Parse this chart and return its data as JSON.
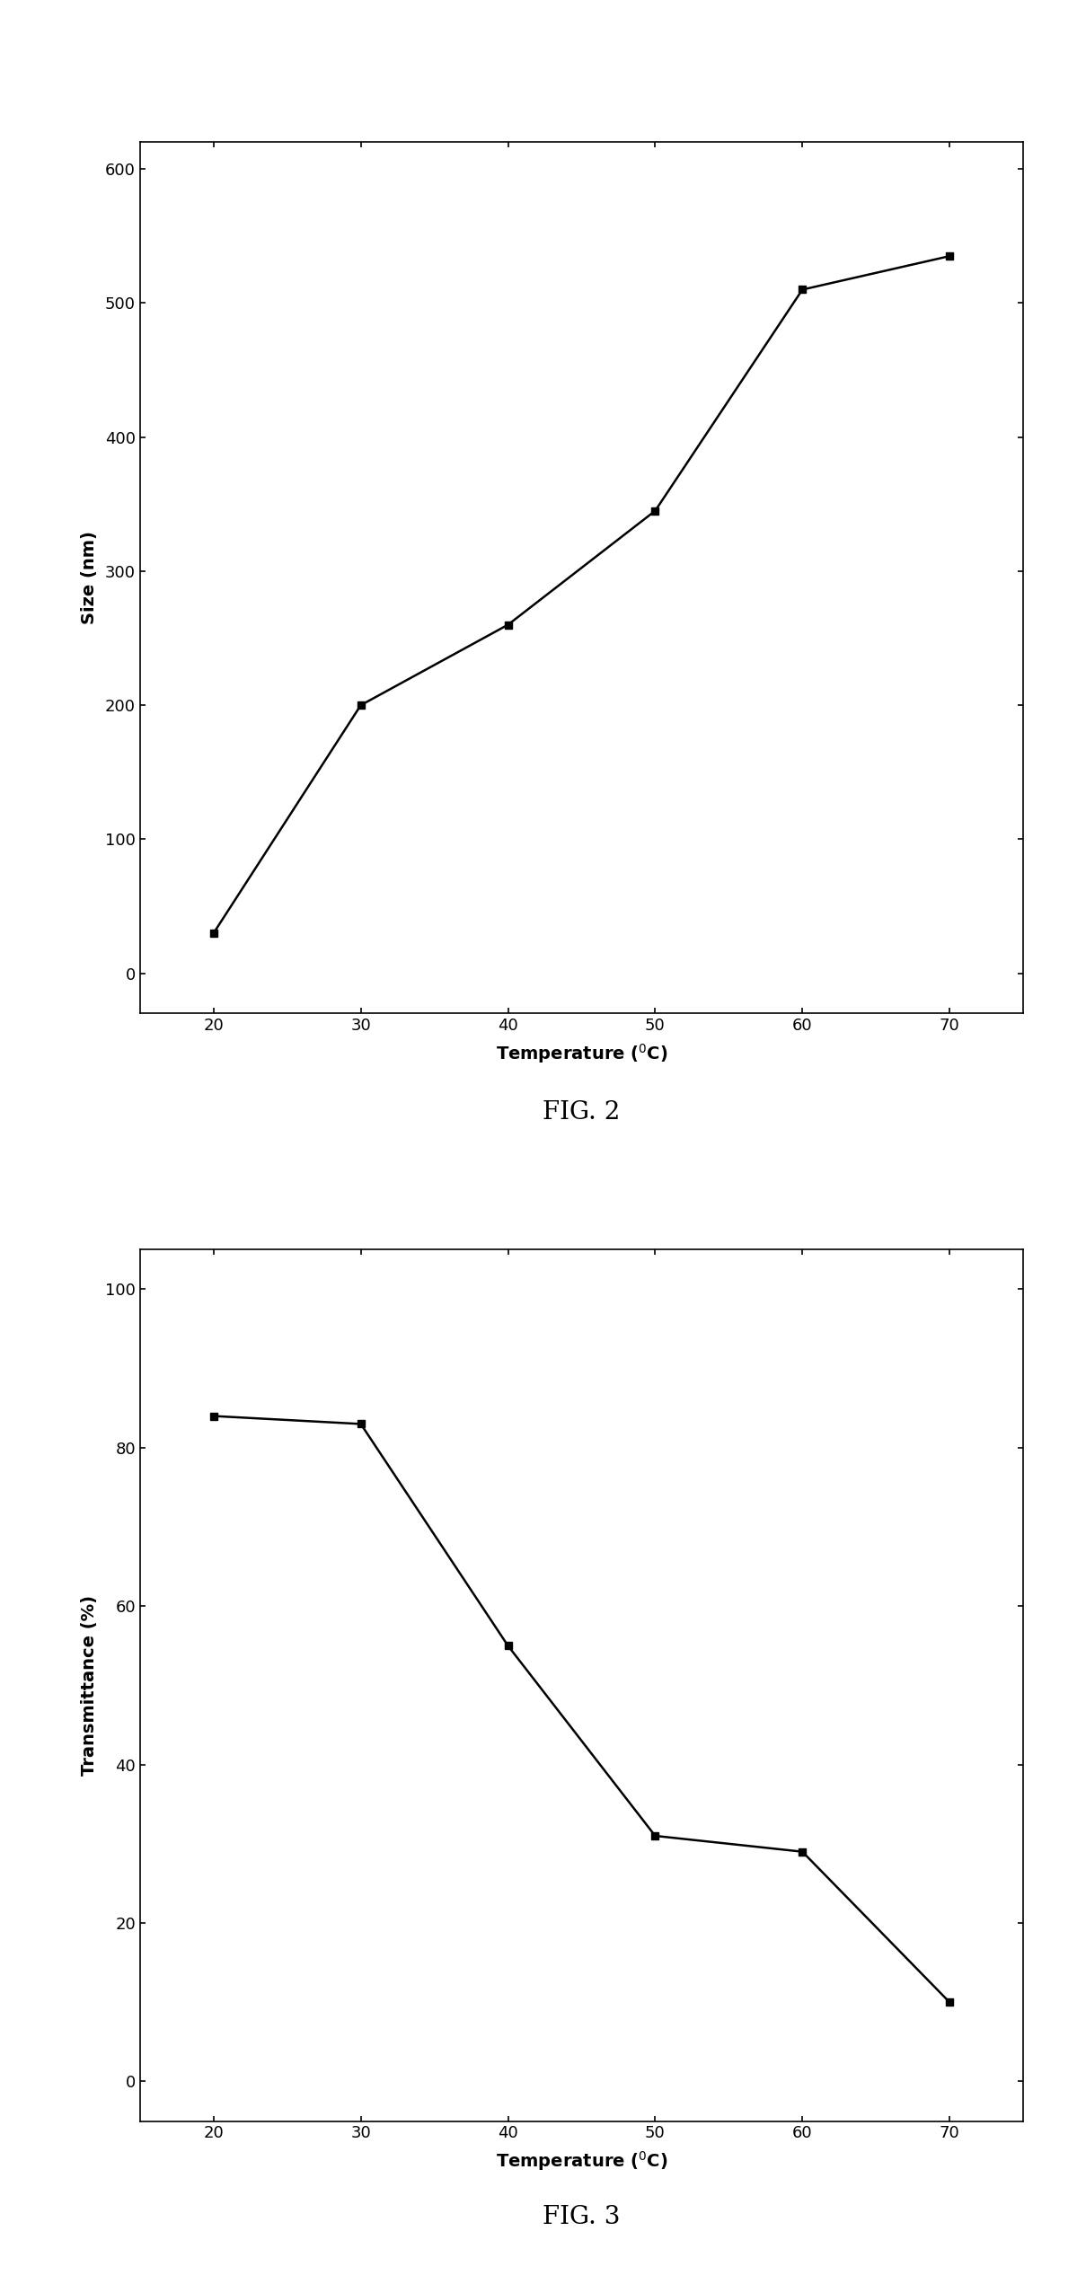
{
  "fig2": {
    "x": [
      20,
      30,
      40,
      50,
      60,
      70
    ],
    "y": [
      30,
      200,
      260,
      345,
      510,
      535
    ],
    "ylabel": "Size (nm)",
    "xlim": [
      15,
      75
    ],
    "ylim": [
      -30,
      620
    ],
    "xticks": [
      20,
      30,
      40,
      50,
      60,
      70
    ],
    "yticks": [
      0,
      100,
      200,
      300,
      400,
      500,
      600
    ],
    "title": "FIG. 2"
  },
  "fig3": {
    "x": [
      20,
      30,
      40,
      50,
      60,
      70
    ],
    "y": [
      84,
      83,
      55,
      31,
      29,
      10
    ],
    "ylabel": "Transmittance (%)",
    "xlim": [
      15,
      75
    ],
    "ylim": [
      -5,
      105
    ],
    "xticks": [
      20,
      30,
      40,
      50,
      60,
      70
    ],
    "yticks": [
      0,
      20,
      40,
      60,
      80,
      100
    ],
    "title": "FIG. 3"
  },
  "line_color": "#000000",
  "marker": "s",
  "marker_size": 6,
  "line_width": 1.8,
  "background_color": "#ffffff",
  "title_fontsize": 20,
  "axis_label_fontsize": 14,
  "tick_fontsize": 13,
  "spine_linewidth": 1.2,
  "fig_width": 11.99,
  "fig_height": 25.53,
  "dpi": 100
}
